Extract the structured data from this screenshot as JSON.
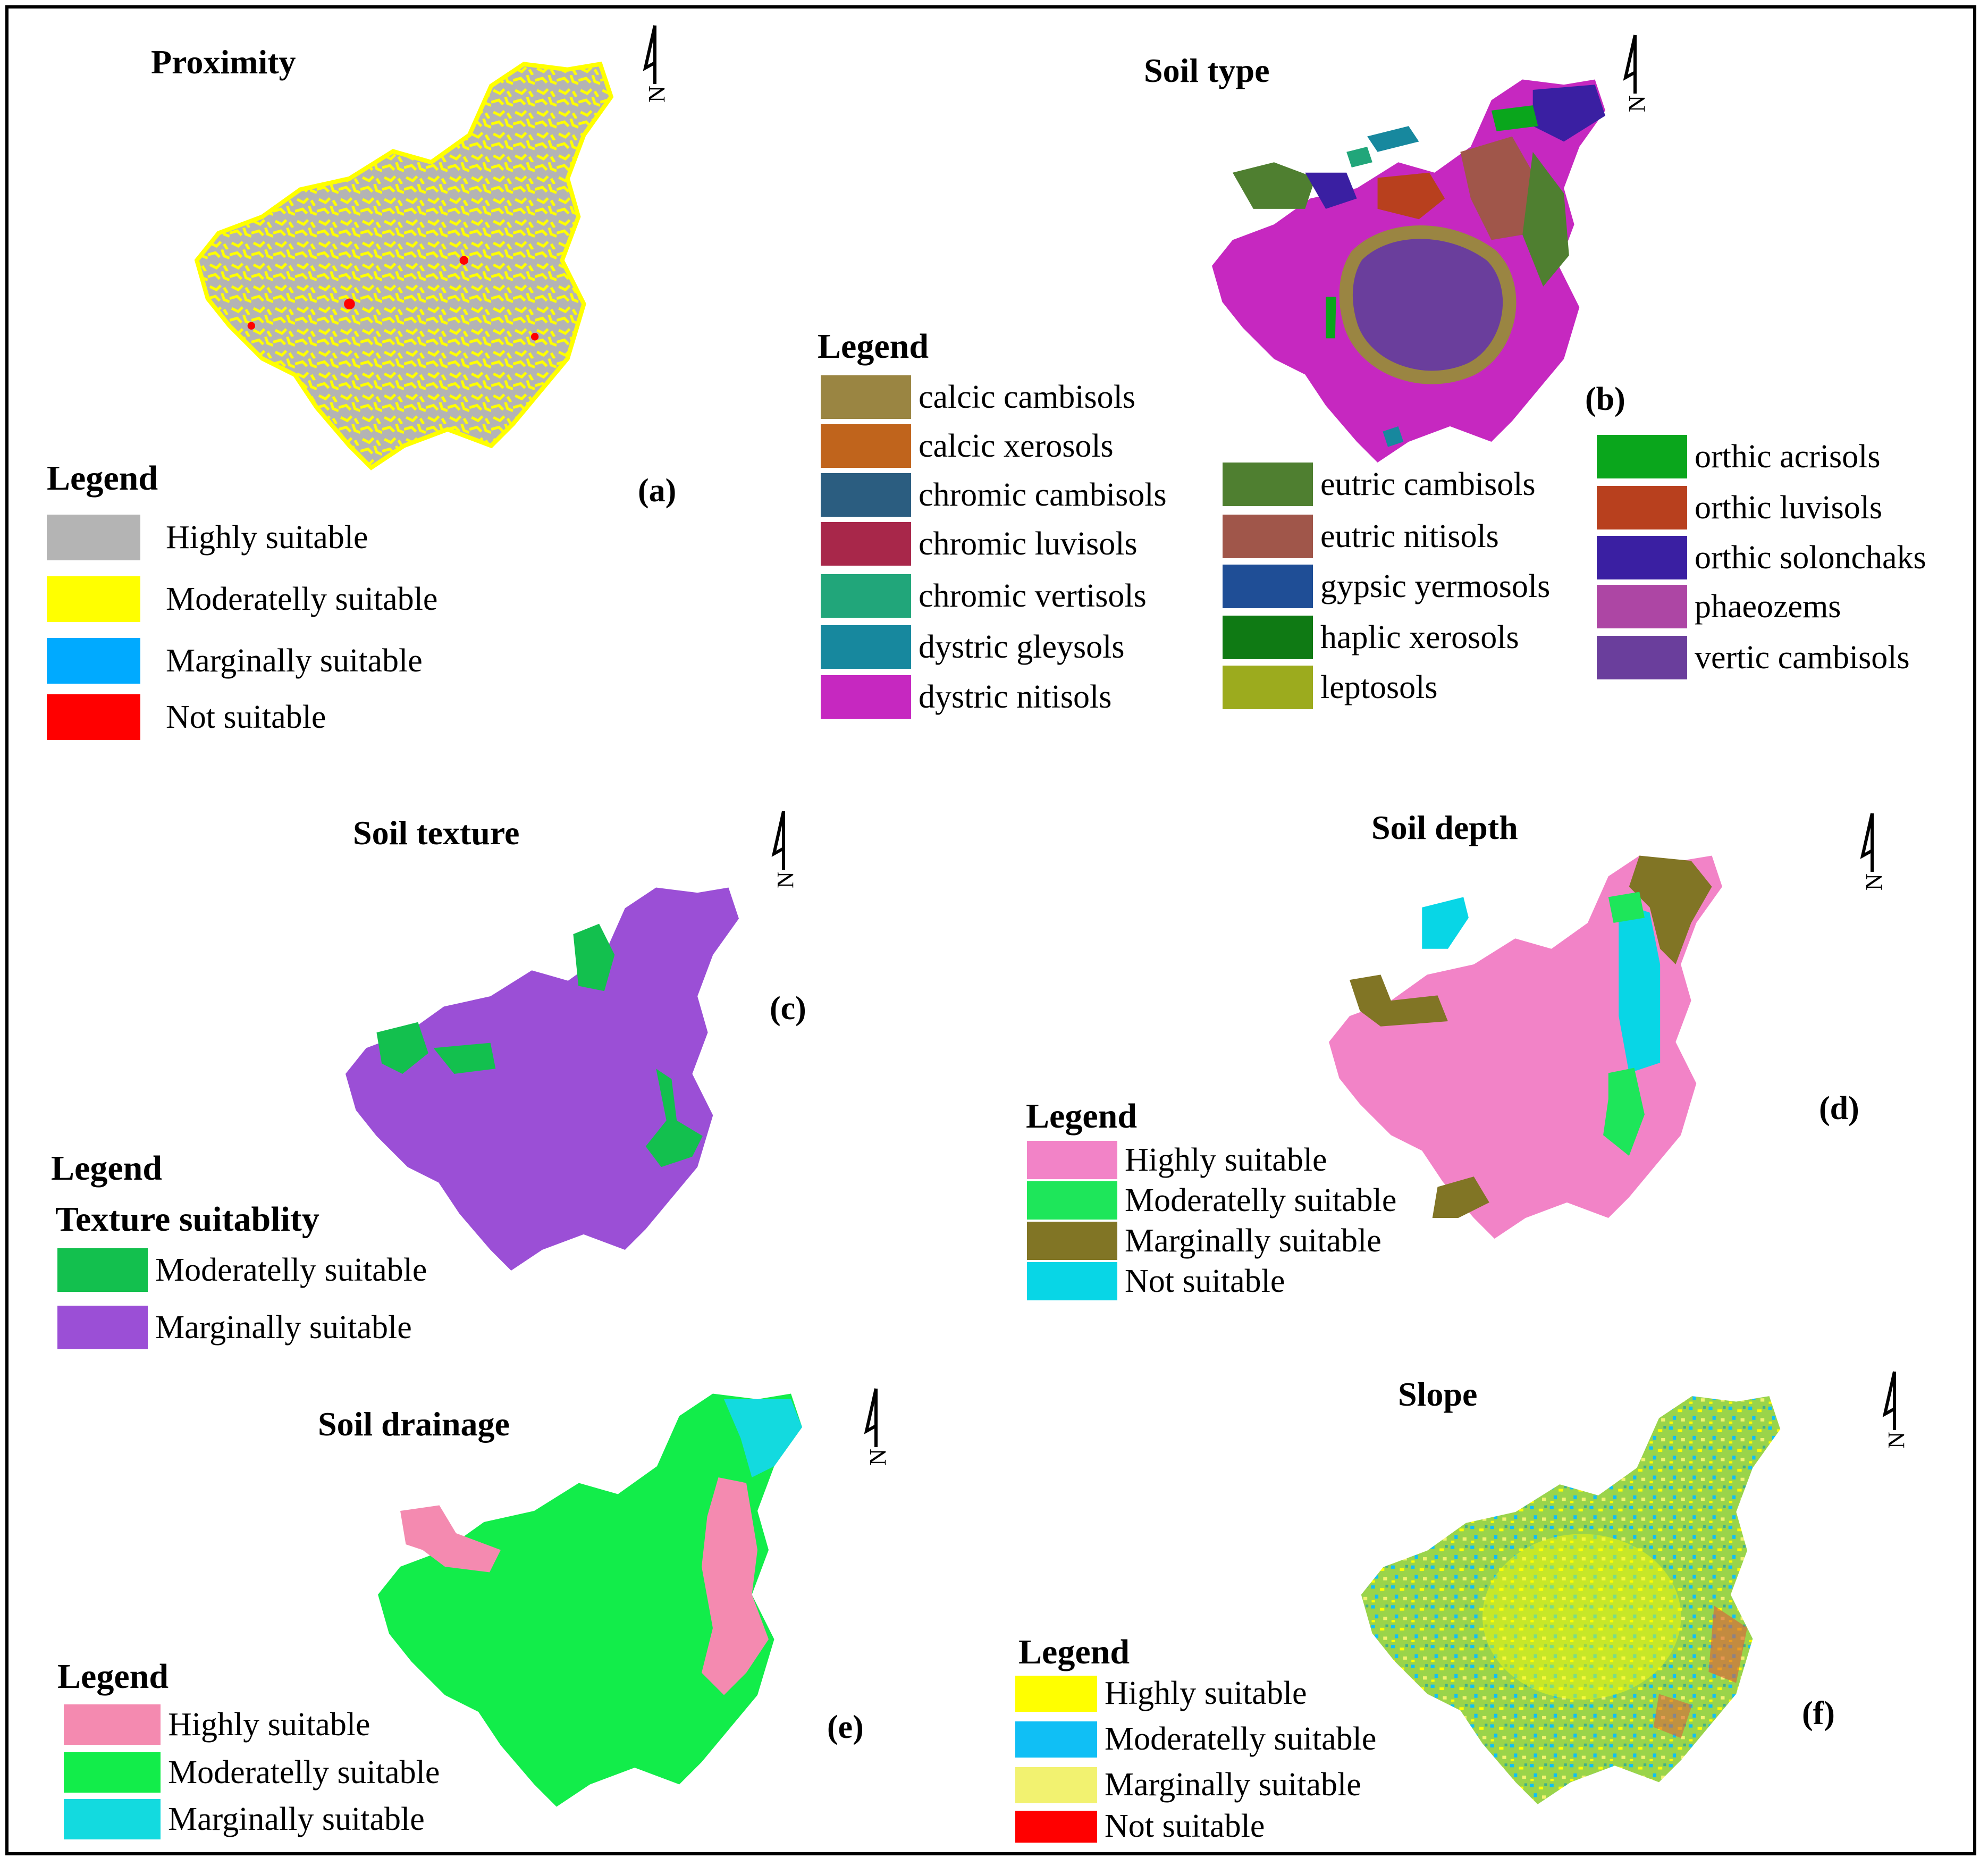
{
  "panels": {
    "a": {
      "title": "Proximity",
      "label": "(a)",
      "legend_heading": "Legend",
      "legend": [
        {
          "label": "Highly suitable",
          "color": "#b4b4b4"
        },
        {
          "label": "Moderatelly suitable",
          "color": "#ffff00"
        },
        {
          "label": "Marginally suitable",
          "color": "#00aaff"
        },
        {
          "label": "Not suitable",
          "color": "#ff0000"
        }
      ]
    },
    "b": {
      "title": "Soil type",
      "label": "(b)",
      "legend_heading": "Legend",
      "legend_col1": [
        {
          "label": "calcic cambisols",
          "color": "#9a8542"
        },
        {
          "label": "calcic xerosols",
          "color": "#c0641c"
        },
        {
          "label": "chromic cambisols",
          "color": "#2b5d80"
        },
        {
          "label": "chromic luvisols",
          "color": "#a8274a"
        },
        {
          "label": "chromic vertisols",
          "color": "#21a67a"
        },
        {
          "label": "dystric gleysols",
          "color": "#17889e"
        },
        {
          "label": "dystric nitisols",
          "color": "#c628c0"
        }
      ],
      "legend_col2": [
        {
          "label": "eutric cambisols",
          "color": "#4f7f30"
        },
        {
          "label": "eutric nitisols",
          "color": "#a0564a"
        },
        {
          "label": "gypsic yermosols",
          "color": "#1f4e96"
        },
        {
          "label": "haplic xerosols",
          "color": "#0f7a14"
        },
        {
          "label": "leptosols",
          "color": "#9cab1e"
        }
      ],
      "legend_col3": [
        {
          "label": "orthic acrisols",
          "color": "#0aa61c"
        },
        {
          "label": "orthic luvisols",
          "color": "#b8401e"
        },
        {
          "label": "orthic solonchaks",
          "color": "#3a1fa2"
        },
        {
          "label": "phaeozems",
          "color": "#ad46a4"
        },
        {
          "label": "vertic cambisols",
          "color": "#6a3e9c"
        }
      ]
    },
    "c": {
      "title": "Soil texture",
      "label": "(c)",
      "legend_heading": "Legend",
      "legend_subheading": "Texture suitablity",
      "legend": [
        {
          "label": "Moderatelly suitable",
          "color": "#13c04e"
        },
        {
          "label": "Marginally suitable",
          "color": "#9b4fd6"
        }
      ]
    },
    "d": {
      "title": "Soil depth",
      "label": "(d)",
      "legend_heading": "Legend",
      "legend": [
        {
          "label": "Highly suitable",
          "color": "#f283c7"
        },
        {
          "label": "Moderatelly suitable",
          "color": "#1ee65a"
        },
        {
          "label": "Marginally suitable",
          "color": "#817525"
        },
        {
          "label": "Not suitable",
          "color": "#08d6e6"
        }
      ]
    },
    "e": {
      "title": "Soil drainage",
      "label": "(e)",
      "legend_heading": "Legend",
      "legend": [
        {
          "label": "Highly suitable",
          "color": "#f48ab0"
        },
        {
          "label": "Moderatelly suitable",
          "color": "#12ed4a"
        },
        {
          "label": "Marginally suitable",
          "color": "#13dadf"
        }
      ]
    },
    "f": {
      "title": "Slope",
      "label": "(f)",
      "legend_heading": "Legend",
      "legend": [
        {
          "label": "Highly suitable",
          "color": "#ffff00"
        },
        {
          "label": "Moderatelly suitable",
          "color": "#10bff5"
        },
        {
          "label": "Marginally suitable",
          "color": "#f2f270"
        },
        {
          "label": "Not suitable",
          "color": "#ff0000"
        }
      ]
    }
  }
}
